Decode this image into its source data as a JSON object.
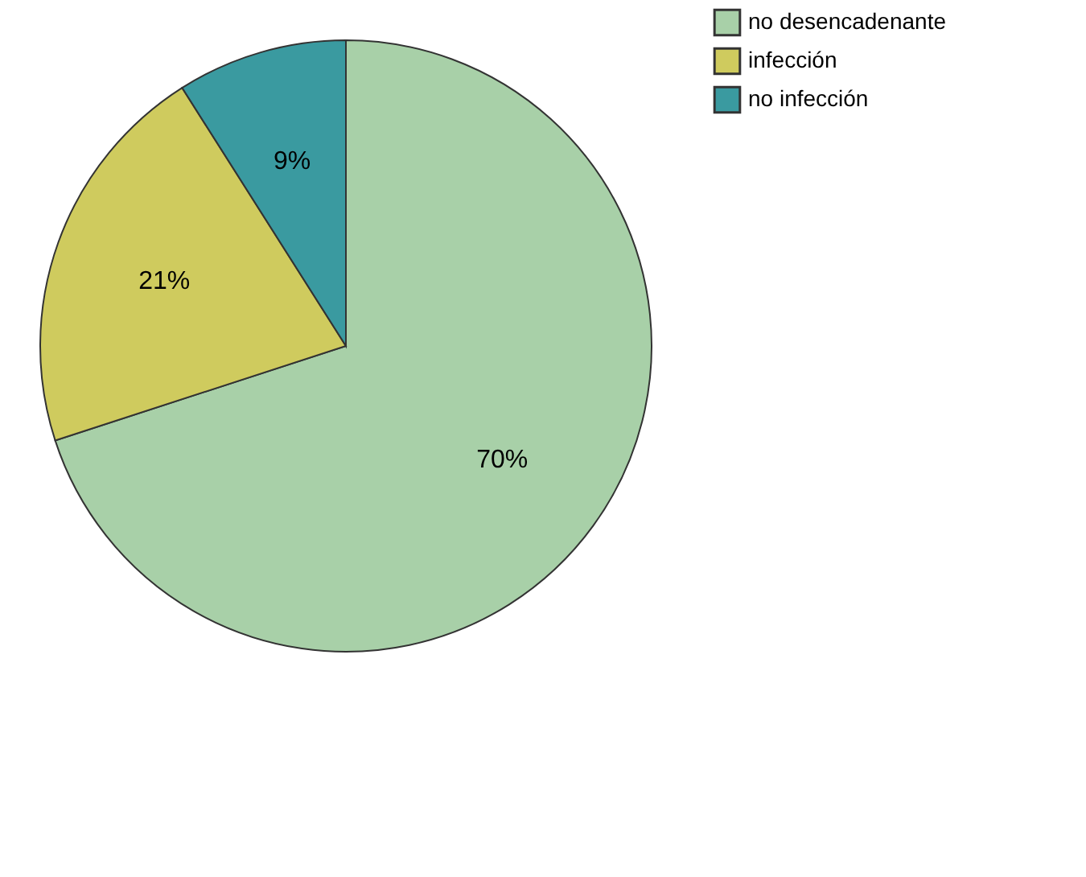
{
  "chart_data": {
    "type": "pie",
    "categories": [
      "no desencadenante",
      "infección",
      "no infección"
    ],
    "values": [
      70,
      21,
      9
    ],
    "colors": [
      "#a8d0a8",
      "#cfcb5e",
      "#3a9aa0"
    ],
    "value_labels": [
      "70%",
      "21%",
      "9%"
    ],
    "legend": "top right"
  }
}
